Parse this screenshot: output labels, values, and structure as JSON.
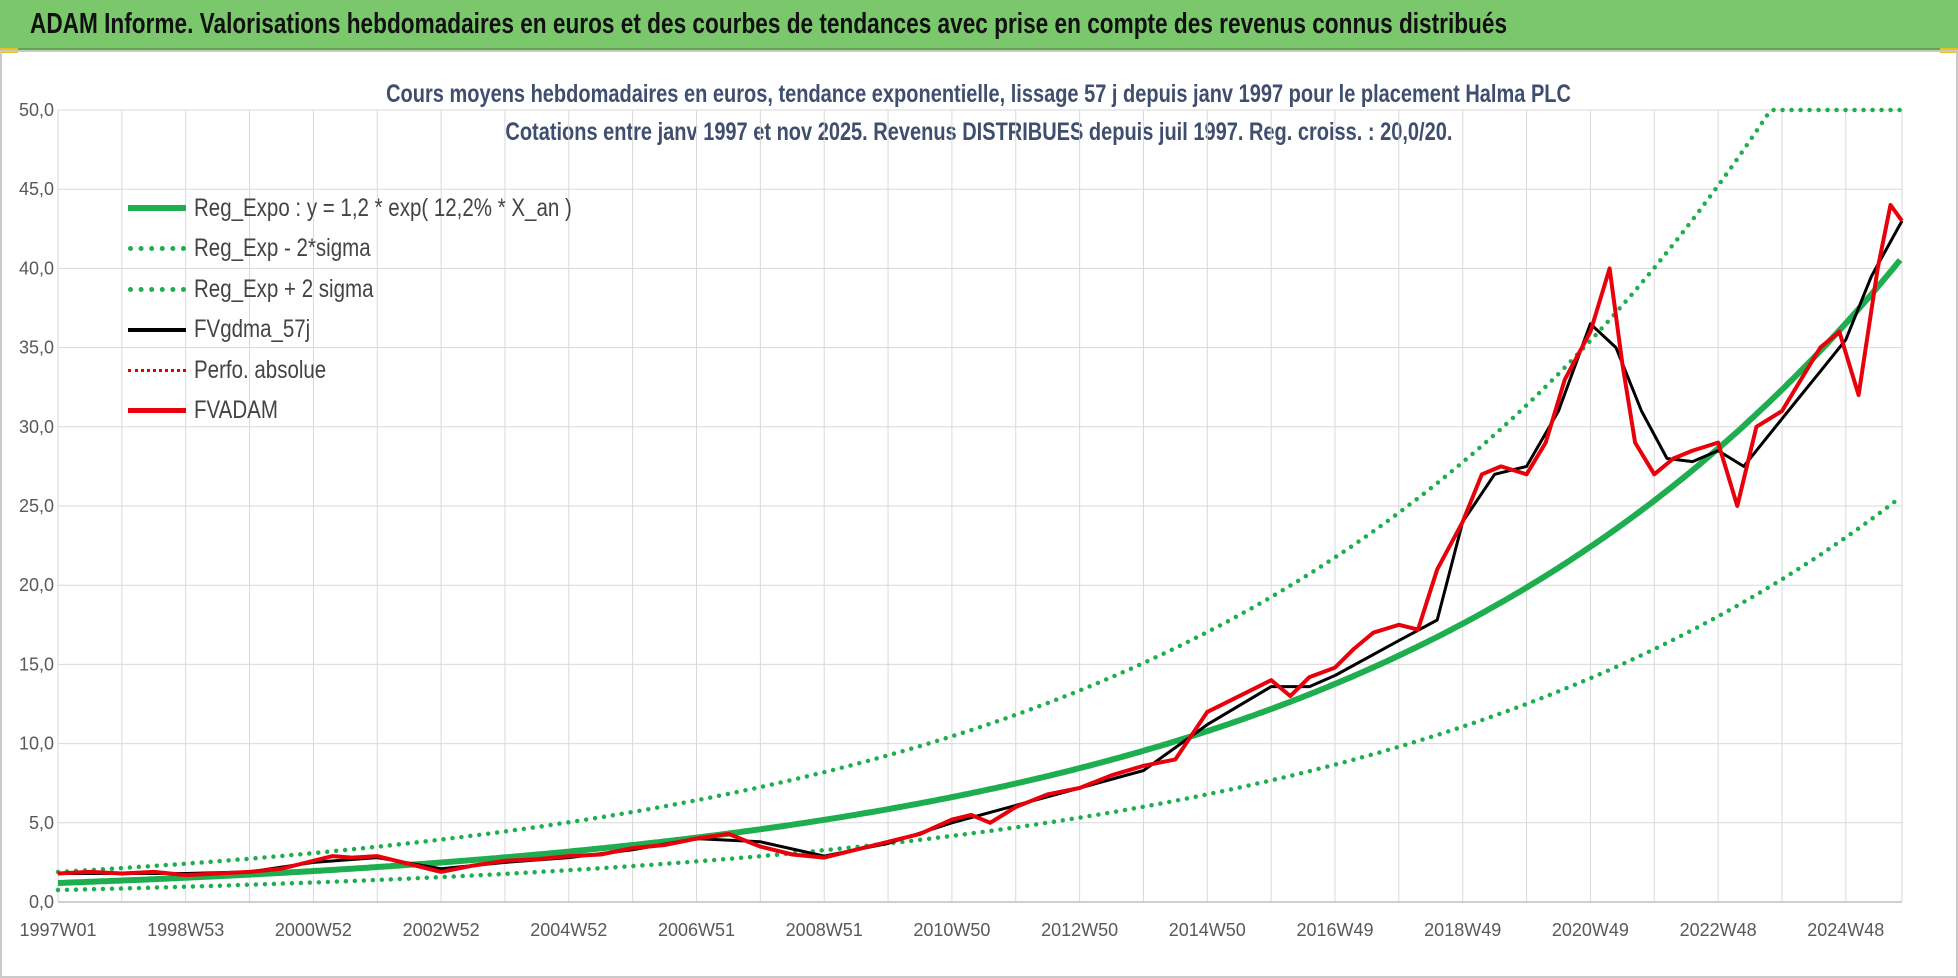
{
  "header": {
    "title": "ADAM Informe. Valorisations hebdomadaires en euros et des courbes de tendances avec prise en compte des revenus connus distribués"
  },
  "chart_data": {
    "type": "line",
    "title_line1": "Cours moyens hebdomadaires en euros, tendance exponentielle, lissage 57 j depuis janv 1997  pour le placement Halma PLC",
    "title_line2": "Cotations entre janv 1997 et nov 2025. Revenus  DISTRIBUES depuis juil 1997. Reg.  croiss. : 20,0/20.",
    "xlabel": "",
    "ylabel": "",
    "ylim": [
      0,
      50
    ],
    "xlim": [
      1997.0,
      2025.88
    ],
    "y_ticks": [
      "0,0",
      "5,0",
      "10,0",
      "15,0",
      "20,0",
      "25,0",
      "30,0",
      "35,0",
      "40,0",
      "45,0",
      "50,0"
    ],
    "x_ticks": [
      {
        "label": "1997W01",
        "x": 1997.0
      },
      {
        "label": "1998W53",
        "x": 1999.0
      },
      {
        "label": "2000W52",
        "x": 2001.0
      },
      {
        "label": "2002W52",
        "x": 2003.0
      },
      {
        "label": "2004W52",
        "x": 2005.0
      },
      {
        "label": "2006W51",
        "x": 2007.0
      },
      {
        "label": "2008W51",
        "x": 2009.0
      },
      {
        "label": "2010W50",
        "x": 2011.0
      },
      {
        "label": "2012W50",
        "x": 2013.0
      },
      {
        "label": "2014W50",
        "x": 2015.0
      },
      {
        "label": "2016W49",
        "x": 2017.0
      },
      {
        "label": "2018W49",
        "x": 2019.0
      },
      {
        "label": "2020W49",
        "x": 2021.0
      },
      {
        "label": "2022W48",
        "x": 2023.0
      },
      {
        "label": "2024W48",
        "x": 2025.0
      }
    ],
    "legend": [
      {
        "name": "Reg_Expo : y = 1,2 * exp( 12,2% *  X_an )",
        "style": "sw-reg"
      },
      {
        "name": "Reg_Exp - 2*sigma",
        "style": "sw-dot"
      },
      {
        "name": "Reg_Exp + 2 sigma",
        "style": "sw-dot"
      },
      {
        "name": "FVgdma_57j",
        "style": "sw-black"
      },
      {
        "name": "Perfo. absolue",
        "style": "sw-reddot"
      },
      {
        "name": "FVADAM",
        "style": "sw-red"
      }
    ],
    "regression": {
      "a": 1.2,
      "b": 0.122,
      "x0": 1997.0
    },
    "sigma_band_factors": {
      "lower": 0.63,
      "upper": 1.58
    },
    "colors": {
      "regression": "#1fae4f",
      "bands": "#1fae4f",
      "smoothed": "#000000",
      "price": "#e8000b",
      "perf": "#e50000",
      "grid": "#d9d9d9",
      "axis_text": "#595959"
    },
    "series": [
      {
        "name": "FVADAM",
        "x": [
          1997.0,
          1997.5,
          1998.0,
          1998.5,
          1999.0,
          1999.5,
          2000.0,
          2000.5,
          2001.0,
          2001.3,
          2001.6,
          2002.0,
          2002.5,
          2003.0,
          2003.5,
          2004.0,
          2004.5,
          2005.0,
          2005.5,
          2006.0,
          2006.5,
          2007.0,
          2007.5,
          2008.0,
          2008.5,
          2009.0,
          2009.5,
          2010.0,
          2010.5,
          2011.0,
          2011.3,
          2011.6,
          2012.0,
          2012.5,
          2013.0,
          2013.5,
          2014.0,
          2014.5,
          2015.0,
          2015.3,
          2015.6,
          2016.0,
          2016.3,
          2016.6,
          2017.0,
          2017.3,
          2017.6,
          2018.0,
          2018.3,
          2018.6,
          2019.0,
          2019.3,
          2019.6,
          2020.0,
          2020.3,
          2020.6,
          2021.0,
          2021.3,
          2021.5,
          2021.7,
          2022.0,
          2022.3,
          2022.6,
          2023.0,
          2023.3,
          2023.6,
          2024.0,
          2024.3,
          2024.6,
          2024.9,
          2025.2,
          2025.5,
          2025.7,
          2025.88
        ],
        "values": [
          1.8,
          1.9,
          1.8,
          1.9,
          1.7,
          1.8,
          1.9,
          2.1,
          2.6,
          2.9,
          2.8,
          2.9,
          2.4,
          1.9,
          2.3,
          2.6,
          2.7,
          2.9,
          3.0,
          3.4,
          3.6,
          4.0,
          4.3,
          3.5,
          3.0,
          2.8,
          3.3,
          3.8,
          4.3,
          5.2,
          5.5,
          5.0,
          6.0,
          6.8,
          7.2,
          8.0,
          8.6,
          9.0,
          12.0,
          12.6,
          13.2,
          14.0,
          13.0,
          14.2,
          14.8,
          16.0,
          17.0,
          17.5,
          17.2,
          21.0,
          24.0,
          27.0,
          27.5,
          27.0,
          29.0,
          33.0,
          36.0,
          40.0,
          34.0,
          29.0,
          27.0,
          28.0,
          28.5,
          29.0,
          25.0,
          30.0,
          31.0,
          33.0,
          35.0,
          36.0,
          32.0,
          40.0,
          44.0,
          43.0
        ]
      },
      {
        "name": "FVgdma_57j",
        "x": [
          1997.0,
          1998.0,
          1999.0,
          2000.0,
          2001.0,
          2002.0,
          2003.0,
          2004.0,
          2005.0,
          2006.0,
          2007.0,
          2008.0,
          2009.0,
          2010.0,
          2011.0,
          2012.0,
          2013.0,
          2014.0,
          2015.0,
          2016.0,
          2016.6,
          2017.0,
          2018.0,
          2018.6,
          2019.0,
          2019.5,
          2020.0,
          2020.5,
          2021.0,
          2021.4,
          2021.8,
          2022.2,
          2022.6,
          2023.0,
          2023.4,
          2023.8,
          2024.2,
          2024.6,
          2025.0,
          2025.4,
          2025.88
        ],
        "values": [
          1.8,
          1.8,
          1.8,
          1.9,
          2.5,
          2.8,
          2.1,
          2.5,
          2.8,
          3.3,
          4.0,
          3.8,
          2.9,
          3.7,
          5.0,
          6.1,
          7.2,
          8.3,
          11.2,
          13.6,
          13.6,
          14.3,
          16.5,
          17.8,
          24.0,
          27.0,
          27.5,
          31.0,
          36.5,
          35.0,
          31.0,
          28.0,
          27.8,
          28.5,
          27.5,
          29.5,
          31.5,
          33.5,
          35.5,
          39.5,
          43.0
        ]
      }
    ]
  }
}
